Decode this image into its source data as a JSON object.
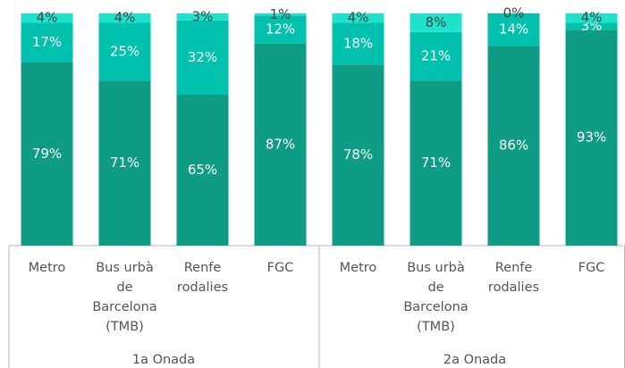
{
  "chart_data": {
    "type": "stacked-bar",
    "categories": [
      [
        "Metro"
      ],
      [
        "Bus urbà",
        "de",
        "Barcelona",
        "(TMB)"
      ],
      [
        "Renfe",
        "rodalies"
      ],
      [
        "FGC"
      ],
      [
        "Metro"
      ],
      [
        "Bus urbà",
        "de",
        "Barcelona",
        "(TMB)"
      ],
      [
        "Renfe",
        "rodalies"
      ],
      [
        "FGC"
      ]
    ],
    "groups": [
      "1a Onada",
      "2a Onada"
    ],
    "ylim": [
      0,
      100
    ],
    "series": [
      {
        "color": "#0f9c84",
        "label_color": "#ffffff",
        "values": [
          79,
          71,
          65,
          87,
          78,
          71,
          86,
          93
        ],
        "value_labels": [
          "79%",
          "71%",
          "65%",
          "87%",
          "78%",
          "71%",
          "86%",
          "93%"
        ]
      },
      {
        "color": "#00c1ad",
        "label_color": "#ffffff",
        "values": [
          17,
          25,
          32,
          12,
          18,
          21,
          14,
          3
        ],
        "value_labels": [
          "17%",
          "25%",
          "32%",
          "12%",
          "18%",
          "21%",
          "14%",
          "3%"
        ]
      },
      {
        "color": "#1ee3cc",
        "label_color": "#444444",
        "values": [
          4,
          4,
          3,
          1,
          4,
          8,
          0,
          4
        ],
        "value_labels": [
          "4%",
          "4%",
          "3%",
          "1%",
          "4%",
          "8%",
          "0%",
          "4%"
        ]
      }
    ]
  }
}
